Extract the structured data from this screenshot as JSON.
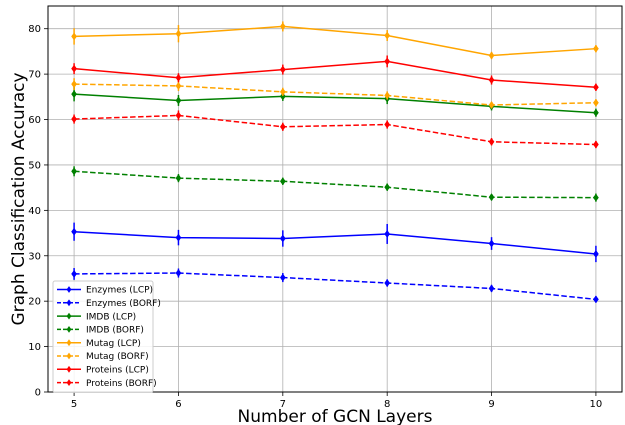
{
  "chart_data": {
    "type": "line",
    "xlabel": "Number of GCN Layers",
    "ylabel": "Graph Classification Accuracy",
    "x": [
      5,
      6,
      7,
      8,
      9,
      10
    ],
    "xlim": [
      4.75,
      10.25
    ],
    "ylim": [
      0,
      85
    ],
    "yticks": [
      0,
      10,
      20,
      30,
      40,
      50,
      60,
      70,
      80
    ],
    "grid": true,
    "legend_position": "lower-left",
    "series": [
      {
        "name": "Enzymes (LCP)",
        "color": "#0000ff",
        "dashed": false,
        "values": [
          35.3,
          34.0,
          33.8,
          34.8,
          32.7,
          30.4
        ],
        "errors": [
          2.0,
          1.7,
          1.8,
          2.2,
          1.4,
          1.8
        ]
      },
      {
        "name": "Enzymes (BORF)",
        "color": "#0000ff",
        "dashed": true,
        "values": [
          26.0,
          26.2,
          25.2,
          24.0,
          22.8,
          20.4
        ],
        "errors": [
          1.3,
          1.0,
          1.0,
          0.8,
          0.8,
          0.7
        ]
      },
      {
        "name": "IMDB (LCP)",
        "color": "#008000",
        "dashed": false,
        "values": [
          65.6,
          64.2,
          65.1,
          64.6,
          62.9,
          61.5
        ],
        "errors": [
          1.6,
          1.2,
          1.0,
          1.2,
          0.9,
          0.9
        ]
      },
      {
        "name": "IMDB (BORF)",
        "color": "#008000",
        "dashed": true,
        "values": [
          48.6,
          47.1,
          46.4,
          45.1,
          42.9,
          42.8
        ],
        "errors": [
          1.1,
          0.9,
          0.8,
          0.8,
          0.7,
          0.9
        ]
      },
      {
        "name": "Mutag (LCP)",
        "color": "#ffa500",
        "dashed": false,
        "values": [
          78.3,
          78.9,
          80.5,
          78.5,
          74.1,
          75.6
        ],
        "errors": [
          1.8,
          1.9,
          1.1,
          1.2,
          0.8,
          0.8
        ]
      },
      {
        "name": "Mutag (BORF)",
        "color": "#ffa500",
        "dashed": true,
        "values": [
          67.8,
          67.4,
          66.1,
          65.3,
          63.2,
          63.7
        ],
        "errors": [
          1.3,
          1.1,
          0.9,
          0.9,
          0.7,
          0.8
        ]
      },
      {
        "name": "Proteins (LCP)",
        "color": "#ff0000",
        "dashed": false,
        "values": [
          71.2,
          69.2,
          71.0,
          72.8,
          68.7,
          67.1
        ],
        "errors": [
          1.2,
          1.0,
          1.1,
          1.3,
          1.0,
          0.8
        ]
      },
      {
        "name": "Proteins (BORF)",
        "color": "#ff0000",
        "dashed": true,
        "values": [
          60.1,
          60.9,
          58.4,
          58.9,
          55.1,
          54.5
        ],
        "errors": [
          1.0,
          1.1,
          0.9,
          0.9,
          0.8,
          0.8
        ]
      }
    ]
  }
}
